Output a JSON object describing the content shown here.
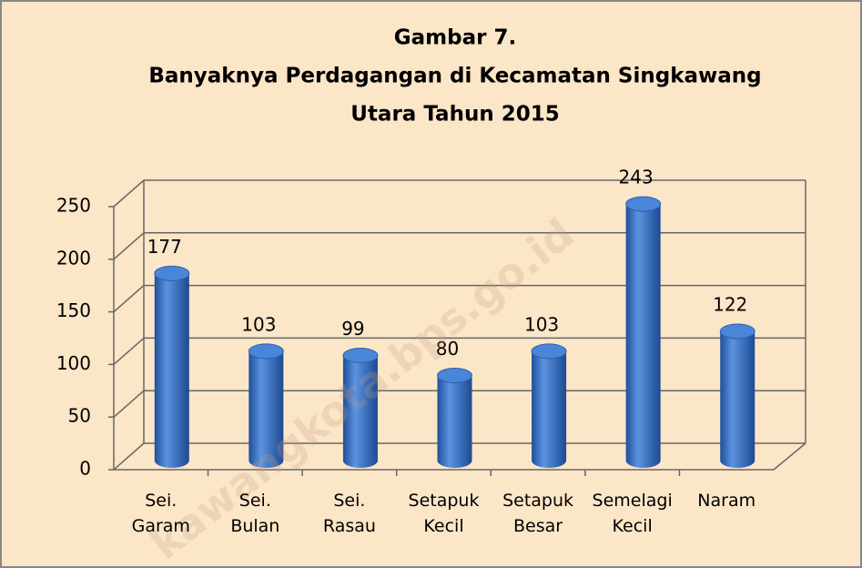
{
  "chart_data": {
    "type": "bar",
    "title": [
      "Gambar 7.",
      "Banyaknya Perdagangan di Kecamatan Singkawang",
      "Utara Tahun 2015"
    ],
    "categories": [
      "Sei. Garam",
      "Sei. Bulan",
      "Sei. Rasau",
      "Setapuk Kecil",
      "Setapuk Besar",
      "Semelagi Kecil",
      "Naram"
    ],
    "values": [
      177,
      103,
      99,
      80,
      103,
      243,
      122
    ],
    "color": "#3f78c8",
    "ylim": [
      0,
      250
    ],
    "yticks": [
      0,
      50,
      100,
      150,
      200,
      250
    ],
    "grid": true,
    "watermark": "kawangkota.bps.go.id"
  }
}
